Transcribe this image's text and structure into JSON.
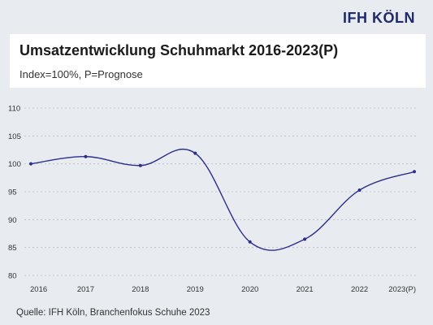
{
  "logo": "IFH KÖLN",
  "source": "Quelle: IFH Köln, Branchenfokus Schuhe 2023",
  "chart_data": {
    "type": "line",
    "title": "Umsatzentwicklung Schuhmarkt 2016-2023(P)",
    "subtitle": "Index=100%, P=Prognose",
    "categories": [
      "2016",
      "2017",
      "2018",
      "2019",
      "2020",
      "2021",
      "2022",
      "2023(P)"
    ],
    "values": [
      100,
      101.3,
      99.7,
      101.9,
      86.0,
      86.5,
      95.3,
      98.6
    ],
    "ylim": [
      80,
      110
    ],
    "yticks": [
      80,
      85,
      90,
      95,
      100,
      105,
      110
    ],
    "grid": true,
    "line_color": "#2e2f8a",
    "xlabel": "",
    "ylabel": ""
  }
}
